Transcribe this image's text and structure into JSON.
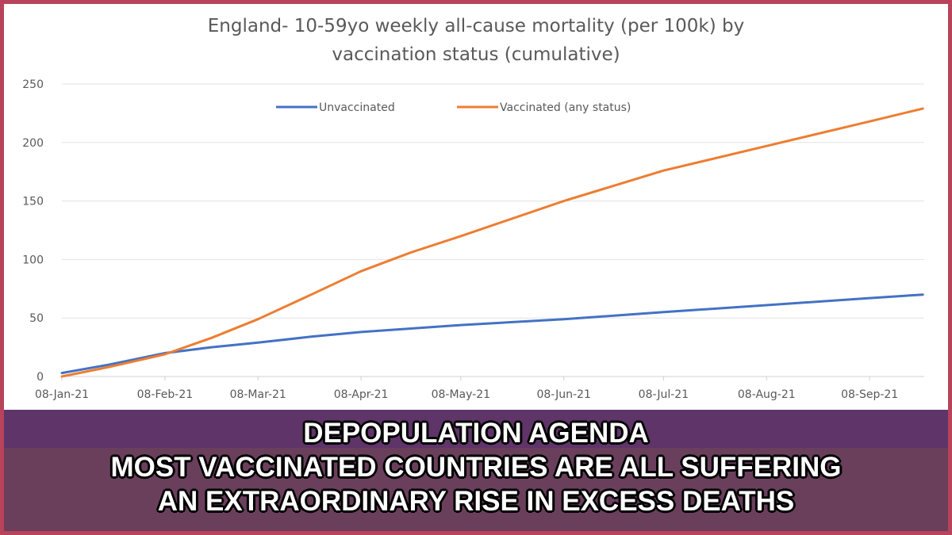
{
  "chart_data": {
    "type": "line",
    "title_line1": "England- 10-59yo weekly all-cause mortality (per 100k) by",
    "title_line2": "vaccination status (cumulative)",
    "xlabel": "",
    "ylabel": "",
    "ylim": [
      0,
      250
    ],
    "yticks": [
      "0",
      "50",
      "100",
      "150",
      "200",
      "250"
    ],
    "ytick_values": [
      0,
      50,
      100,
      150,
      200,
      250
    ],
    "x_unit": "days since 08-Jan-21",
    "xlim": [
      0,
      259
    ],
    "xtick_labels": [
      "08-Jan-21",
      "08-Feb-21",
      "08-Mar-21",
      "08-Apr-21",
      "08-May-21",
      "08-Jun-21",
      "08-Jul-21",
      "08-Aug-21",
      "08-Sep-21"
    ],
    "xtick_days": [
      0,
      31,
      59,
      90,
      120,
      151,
      181,
      212,
      243
    ],
    "grid": true,
    "legend_position": "top-center",
    "series": [
      {
        "name": "Unvaccinated",
        "color": "#4472c4",
        "x": [
          0,
          14,
          31,
          45,
          59,
          75,
          90,
          105,
          120,
          151,
          181,
          212,
          243,
          259
        ],
        "values": [
          3,
          10,
          20,
          25,
          29,
          34,
          38,
          41,
          44,
          49,
          55,
          61,
          67,
          70
        ]
      },
      {
        "name": "Vaccinated (any status)",
        "color": "#ed7d31",
        "x": [
          0,
          14,
          31,
          45,
          59,
          75,
          90,
          105,
          120,
          151,
          181,
          212,
          243,
          259
        ],
        "values": [
          0,
          8,
          19,
          33,
          49,
          70,
          90,
          106,
          120,
          150,
          176,
          197,
          218,
          229
        ]
      }
    ]
  },
  "banner": {
    "line1": "DEPOPULATION AGENDA",
    "line2": "MOST VACCINATED COUNTRIES ARE ALL SUFFERING",
    "line3": "AN EXTRAORDINARY RISE IN EXCESS DEATHS"
  },
  "colors": {
    "border": "#b8435a",
    "band_top": "#5f3468",
    "band_bottom": "#6a3f5c"
  }
}
